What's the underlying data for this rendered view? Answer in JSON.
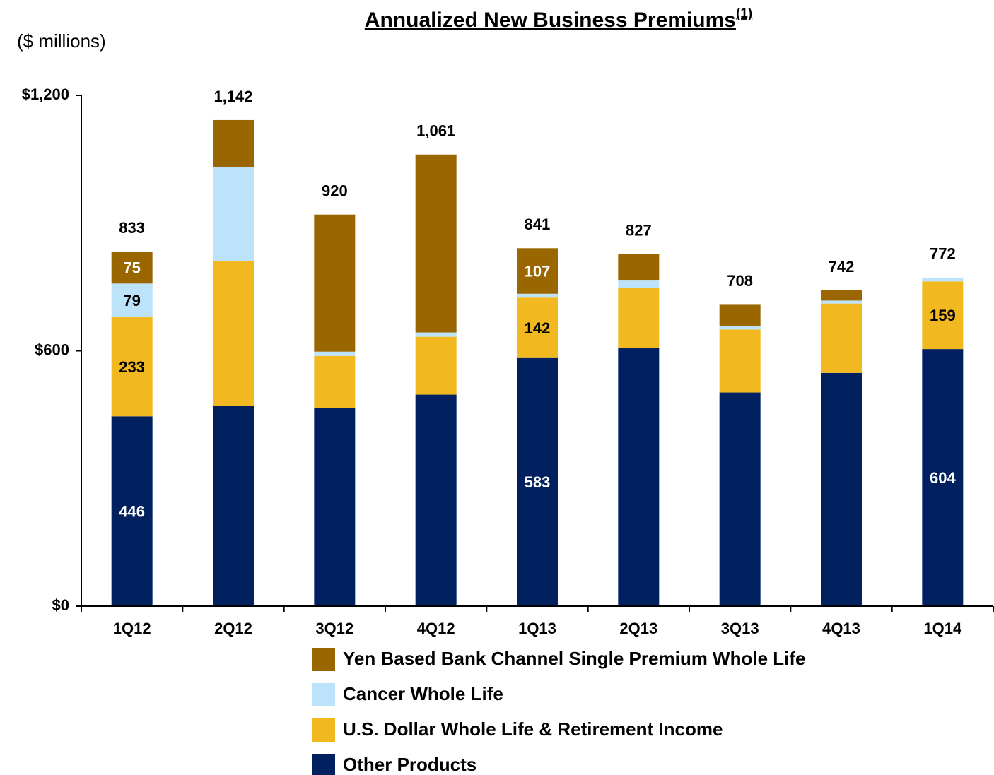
{
  "chart_data": {
    "type": "stacked_bar",
    "title": "Annualized New Business Premiums",
    "title_note": "(1)",
    "subtitle": "($ millions)",
    "categories": [
      "1Q12",
      "2Q12",
      "3Q12",
      "4Q12",
      "1Q13",
      "2Q13",
      "3Q13",
      "4Q13",
      "1Q14"
    ],
    "series": [
      {
        "name": "Other Products",
        "color": "#002060",
        "label_color": "#ffffff",
        "values": [
          446,
          470,
          465,
          497,
          583,
          607,
          502,
          548,
          604
        ],
        "value_labels": [
          446,
          null,
          null,
          null,
          583,
          null,
          null,
          null,
          604
        ]
      },
      {
        "name": "U.S. Dollar Whole Life & Retirement Income",
        "color": "#f2b820",
        "label_color": "#000000",
        "values": [
          233,
          341,
          123,
          136,
          142,
          141,
          148,
          163,
          159
        ],
        "value_labels": [
          233,
          null,
          null,
          null,
          142,
          null,
          null,
          null,
          159
        ]
      },
      {
        "name": "Cancer Whole Life",
        "color": "#bde3fb",
        "label_color": "#000000",
        "values": [
          79,
          221,
          10,
          10,
          9,
          17,
          8,
          7,
          9
        ],
        "value_labels": [
          79,
          null,
          null,
          null,
          null,
          null,
          null,
          null,
          null
        ]
      },
      {
        "name": "Yen Based Bank Channel Single Premium Whole Life",
        "color": "#996600",
        "label_color": "#ffffff",
        "values": [
          75,
          110,
          322,
          418,
          107,
          62,
          50,
          24,
          0
        ],
        "value_labels": [
          75,
          null,
          null,
          null,
          107,
          null,
          null,
          null,
          null
        ]
      }
    ],
    "totals": [
      833,
      1142,
      920,
      1061,
      841,
      827,
      708,
      742,
      772
    ],
    "total_labels": [
      "833",
      "1,142",
      "920",
      "1,061",
      "841",
      "827",
      "708",
      "742",
      "772"
    ],
    "ylim": [
      0,
      1200
    ],
    "yticks": [
      {
        "value": 0,
        "label": "$0"
      },
      {
        "value": 600,
        "label": "$600"
      },
      {
        "value": 1200,
        "label": "$1,200"
      }
    ],
    "grid": false,
    "legend": "bottom"
  }
}
